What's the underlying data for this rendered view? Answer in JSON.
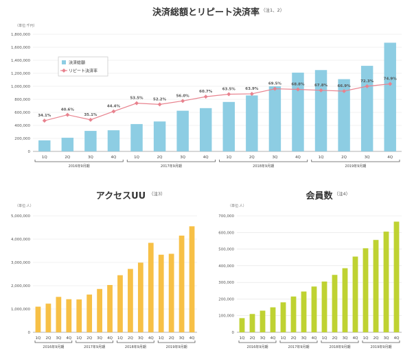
{
  "chart_data": [
    {
      "type": "bar",
      "title": "決済総額とリピート決済率",
      "title_note": "（注1、2）",
      "unit": "（単位:千円）",
      "categories": [
        "1Q",
        "2Q",
        "3Q",
        "4Q",
        "1Q",
        "2Q",
        "3Q",
        "4Q",
        "1Q",
        "2Q",
        "3Q",
        "4Q",
        "1Q",
        "2Q",
        "3Q",
        "4Q"
      ],
      "groups": [
        "2016年9月期",
        "2017年9月期",
        "2018年9月期",
        "2019年9月期"
      ],
      "y_ticks": [
        "0",
        "200,000",
        "400,000",
        "600,000",
        "800,000",
        "1,000,000",
        "1,200,000",
        "1,400,000",
        "1,600,000",
        "1,800,000"
      ],
      "ylim": [
        0,
        1800000
      ],
      "legend_position": "top-left",
      "series": [
        {
          "name": "決済総額",
          "kind": "bar",
          "color": "#8DCDE3",
          "values": [
            170000,
            210000,
            315000,
            325000,
            420000,
            460000,
            625000,
            665000,
            760000,
            860000,
            1000000,
            1210000,
            1250000,
            1110000,
            1315000,
            1670000
          ]
        },
        {
          "name": "リピート決済率",
          "kind": "line",
          "color": "#E8828E",
          "values": [
            34.1,
            40.6,
            35.1,
            44.4,
            53.5,
            52.2,
            56.0,
            60.7,
            63.5,
            63.9,
            69.5,
            68.8,
            67.8,
            66.9,
            72.3,
            74.9
          ],
          "labels": [
            "34.1%",
            "40.6%",
            "35.1%",
            "44.4%",
            "53.5%",
            "52.2%",
            "56.0%",
            "60.7%",
            "63.5%",
            "63.9%",
            "69.5%",
            "68.8%",
            "67.8%",
            "66.9%",
            "72.3%",
            "74.9%"
          ]
        }
      ]
    },
    {
      "type": "bar",
      "title": "アクセスUU",
      "title_note": "（注3）",
      "unit": "（単位:人）",
      "categories": [
        "1Q",
        "2Q",
        "3Q",
        "4Q",
        "1Q",
        "2Q",
        "3Q",
        "4Q",
        "1Q",
        "2Q",
        "3Q",
        "4Q",
        "1Q",
        "2Q",
        "3Q",
        "4Q"
      ],
      "groups": [
        "2016年9月期",
        "2017年9月期",
        "2018年9月期",
        "2019年9月期"
      ],
      "y_ticks": [
        "0",
        "1,000,000",
        "2,000,000",
        "3,000,000",
        "4,000,000",
        "5,000,000"
      ],
      "ylim": [
        0,
        5000000
      ],
      "color": "#F7C046",
      "values": [
        1100000,
        1230000,
        1520000,
        1420000,
        1410000,
        1620000,
        1860000,
        2030000,
        2450000,
        2720000,
        2990000,
        3840000,
        3330000,
        3370000,
        4150000,
        4550000
      ]
    },
    {
      "type": "bar",
      "title": "会員数",
      "title_note": "（注4）",
      "unit": "（単位:人）",
      "categories": [
        "1Q",
        "2Q",
        "3Q",
        "4Q",
        "1Q",
        "2Q",
        "3Q",
        "4Q",
        "1Q",
        "2Q",
        "3Q",
        "4Q",
        "1Q",
        "2Q",
        "3Q",
        "4Q"
      ],
      "groups": [
        "2016年9月期",
        "2017年9月期",
        "2018年9月期",
        "2019年9月期"
      ],
      "y_ticks": [
        "0",
        "100,000",
        "200,000",
        "300,000",
        "400,000",
        "500,000",
        "600,000",
        "700,000"
      ],
      "ylim": [
        0,
        700000
      ],
      "color": "#BFD232",
      "values": [
        85000,
        110000,
        130000,
        150000,
        180000,
        215000,
        245000,
        275000,
        305000,
        345000,
        385000,
        455000,
        505000,
        555000,
        605000,
        665000
      ]
    }
  ]
}
